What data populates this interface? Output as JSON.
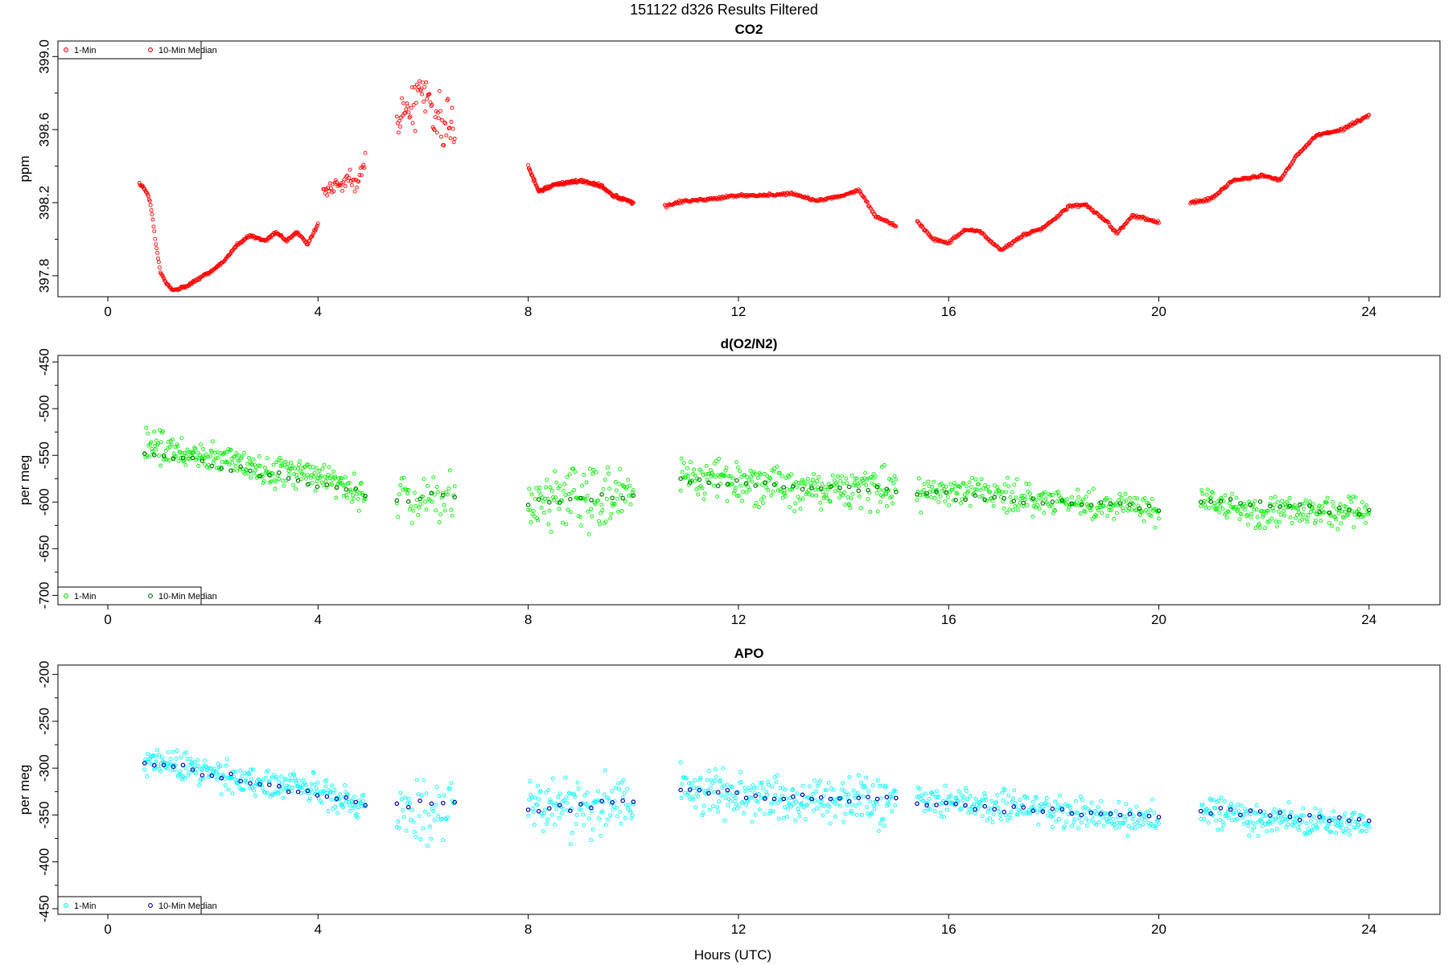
{
  "figure": {
    "suptitle": "151122   d326   Results Filtered",
    "xlabel": "Hours (UTC)"
  },
  "chart_data": [
    {
      "type": "scatter",
      "title": "CO2",
      "ylabel": "ppm",
      "xlim": [
        -0.95,
        25.35
      ],
      "ylim": [
        397.685,
        399.085
      ],
      "xticks": [
        0,
        4,
        8,
        12,
        16,
        20,
        24
      ],
      "yticks": [
        397.8,
        398.2,
        398.6,
        399.0
      ],
      "ytick_labels": [
        "397.8",
        "398.2",
        "398.6",
        "399.0"
      ],
      "legend_position": "top-left",
      "series": [
        {
          "name": "1-Min",
          "color": "#ff0000",
          "noise": 0.007,
          "segments": [
            {
              "points": [
                [
                  0.6,
                  398.31
                ],
                [
                  0.75,
                  398.25
                ],
                [
                  0.8,
                  398.21
                ],
                [
                  0.85,
                  398.12
                ],
                [
                  0.9,
                  398.0
                ],
                [
                  1.0,
                  397.82
                ],
                [
                  1.1,
                  397.76
                ],
                [
                  1.25,
                  397.72
                ],
                [
                  1.5,
                  397.74
                ],
                [
                  1.8,
                  397.8
                ],
                [
                  2.0,
                  397.83
                ],
                [
                  2.2,
                  397.88
                ],
                [
                  2.5,
                  397.98
                ],
                [
                  2.7,
                  398.02
                ],
                [
                  3.0,
                  397.99
                ],
                [
                  3.2,
                  398.04
                ],
                [
                  3.4,
                  397.99
                ],
                [
                  3.6,
                  398.04
                ],
                [
                  3.8,
                  397.97
                ],
                [
                  4.0,
                  398.08
                ]
              ],
              "n": 240
            },
            {
              "points": [
                [
                  4.1,
                  398.25
                ],
                [
                  4.4,
                  398.3
                ],
                [
                  4.6,
                  398.35
                ],
                [
                  4.7,
                  398.28
                ],
                [
                  4.9,
                  398.45
                ]
              ],
              "n": 45,
              "noise": 0.045
            },
            {
              "points": [
                [
                  5.5,
                  398.64
                ],
                [
                  5.8,
                  398.72
                ],
                [
                  6.0,
                  398.85
                ],
                [
                  6.2,
                  398.72
                ],
                [
                  6.4,
                  398.6
                ],
                [
                  6.6,
                  398.6
                ]
              ],
              "n": 70,
              "noise": 0.12
            },
            {
              "points": [
                [
                  8.0,
                  398.4
                ],
                [
                  8.2,
                  398.26
                ],
                [
                  8.5,
                  398.3
                ],
                [
                  9.0,
                  398.32
                ],
                [
                  9.4,
                  398.29
                ],
                [
                  9.6,
                  398.24
                ],
                [
                  10.0,
                  398.2
                ]
              ],
              "n": 200
            },
            {
              "points": [
                [
                  10.6,
                  398.18
                ],
                [
                  11.0,
                  398.21
                ],
                [
                  11.5,
                  398.22
                ],
                [
                  12.0,
                  398.24
                ],
                [
                  12.5,
                  398.24
                ],
                [
                  13.0,
                  398.25
                ],
                [
                  13.5,
                  398.21
                ],
                [
                  14.0,
                  398.24
                ],
                [
                  14.3,
                  398.27
                ],
                [
                  14.6,
                  398.13
                ],
                [
                  15.0,
                  398.07
                ]
              ],
              "n": 260
            },
            {
              "points": [
                [
                  15.4,
                  398.1
                ],
                [
                  15.7,
                  398.0
                ],
                [
                  16.0,
                  397.98
                ],
                [
                  16.3,
                  398.05
                ],
                [
                  16.6,
                  398.04
                ],
                [
                  17.0,
                  397.94
                ],
                [
                  17.4,
                  398.02
                ],
                [
                  17.8,
                  398.06
                ],
                [
                  18.3,
                  398.18
                ],
                [
                  18.6,
                  398.19
                ],
                [
                  19.0,
                  398.1
                ],
                [
                  19.2,
                  398.03
                ],
                [
                  19.5,
                  398.13
                ],
                [
                  20.0,
                  398.09
                ]
              ],
              "n": 280
            },
            {
              "points": [
                [
                  20.6,
                  398.2
                ],
                [
                  21.0,
                  398.22
                ],
                [
                  21.4,
                  398.32
                ],
                [
                  22.0,
                  398.35
                ],
                [
                  22.3,
                  398.32
                ],
                [
                  22.6,
                  398.45
                ],
                [
                  23.0,
                  398.57
                ],
                [
                  23.5,
                  398.6
                ],
                [
                  24.0,
                  398.68
                ]
              ],
              "n": 220
            }
          ]
        },
        {
          "name": "10-Min Median",
          "color": "#cc0000",
          "segments": []
        }
      ]
    },
    {
      "type": "scatter",
      "title": "d(O2/N2)",
      "ylabel": "per meg",
      "xlim": [
        -0.95,
        25.35
      ],
      "ylim": [
        -710,
        -443
      ],
      "xticks": [
        0,
        4,
        8,
        12,
        16,
        20,
        24
      ],
      "yticks": [
        -700,
        -650,
        -600,
        -550,
        -500,
        -450
      ],
      "ytick_labels": [
        "-700",
        "-650",
        "-600",
        "-550",
        "-500",
        "-450"
      ],
      "legend_position": "bottom-left",
      "series": [
        {
          "name": "1-Min",
          "color": "#00ee00",
          "noise": 14,
          "segments": [
            {
              "points": [
                [
                  0.7,
                  -540
                ],
                [
                  2.0,
                  -552
                ],
                [
                  3.0,
                  -568
                ],
                [
                  4.0,
                  -572
                ],
                [
                  4.9,
                  -592
                ]
              ],
              "n": 280
            },
            {
              "points": [
                [
                  5.5,
                  -598
                ],
                [
                  6.6,
                  -600
                ]
              ],
              "n": 50,
              "noise": 30
            },
            {
              "points": [
                [
                  8.0,
                  -598
                ],
                [
                  10.0,
                  -590
                ]
              ],
              "n": 120,
              "noise": 28
            },
            {
              "points": [
                [
                  10.9,
                  -570
                ],
                [
                  12.0,
                  -578
                ],
                [
                  13.0,
                  -585
                ],
                [
                  15.0,
                  -585
                ]
              ],
              "n": 260,
              "noise": 22
            },
            {
              "points": [
                [
                  15.4,
                  -590
                ],
                [
                  17.0,
                  -592
                ],
                [
                  18.0,
                  -600
                ],
                [
                  20.0,
                  -608
                ]
              ],
              "n": 260,
              "noise": 14
            },
            {
              "points": [
                [
                  20.8,
                  -598
                ],
                [
                  22.0,
                  -610
                ],
                [
                  24.0,
                  -614
                ]
              ],
              "n": 200,
              "noise": 14
            }
          ]
        },
        {
          "name": "10-Min Median",
          "color": "#007700",
          "segments": [
            {
              "points": [
                [
                  0.7,
                  -545
                ],
                [
                  4.9,
                  -590
                ]
              ],
              "n": 24
            },
            {
              "points": [
                [
                  5.5,
                  -597
                ],
                [
                  6.6,
                  -592
                ]
              ],
              "n": 6
            },
            {
              "points": [
                [
                  8.0,
                  -600
                ],
                [
                  10.0,
                  -591
                ]
              ],
              "n": 11
            },
            {
              "points": [
                [
                  10.9,
                  -578
                ],
                [
                  15.0,
                  -588
                ]
              ],
              "n": 24
            },
            {
              "points": [
                [
                  15.4,
                  -592
                ],
                [
                  20.0,
                  -606
                ]
              ],
              "n": 26
            },
            {
              "points": [
                [
                  20.8,
                  -598
                ],
                [
                  24.0,
                  -612
                ]
              ],
              "n": 18
            }
          ]
        }
      ]
    },
    {
      "type": "scatter",
      "title": "APO",
      "ylabel": "per meg",
      "xlim": [
        -0.95,
        25.35
      ],
      "ylim": [
        -456,
        -190
      ],
      "xticks": [
        0,
        4,
        8,
        12,
        16,
        20,
        24
      ],
      "yticks": [
        -450,
        -400,
        -350,
        -300,
        -250,
        -200
      ],
      "ytick_labels": [
        "-450",
        "-400",
        "-350",
        "-300",
        "-250",
        "-200"
      ],
      "legend_position": "bottom-left",
      "series": [
        {
          "name": "1-Min",
          "color": "#00ffff",
          "noise": 14,
          "segments": [
            {
              "points": [
                [
                  0.7,
                  -290
                ],
                [
                  2.0,
                  -305
                ],
                [
                  3.0,
                  -318
                ],
                [
                  4.0,
                  -322
                ],
                [
                  4.9,
                  -345
                ]
              ],
              "n": 280
            },
            {
              "points": [
                [
                  5.5,
                  -340
                ],
                [
                  6.6,
                  -345
                ]
              ],
              "n": 50,
              "noise": 32
            },
            {
              "points": [
                [
                  8.0,
                  -345
                ],
                [
                  10.0,
                  -338
                ]
              ],
              "n": 120,
              "noise": 28
            },
            {
              "points": [
                [
                  10.9,
                  -322
                ],
                [
                  12.0,
                  -330
                ],
                [
                  13.0,
                  -335
                ],
                [
                  15.0,
                  -335
                ]
              ],
              "n": 260,
              "noise": 22
            },
            {
              "points": [
                [
                  15.4,
                  -335
                ],
                [
                  17.0,
                  -340
                ],
                [
                  18.0,
                  -348
                ],
                [
                  20.0,
                  -355
                ]
              ],
              "n": 260,
              "noise": 14
            },
            {
              "points": [
                [
                  20.8,
                  -345
                ],
                [
                  22.0,
                  -355
                ],
                [
                  24.0,
                  -360
                ]
              ],
              "n": 200,
              "noise": 14
            }
          ]
        },
        {
          "name": "10-Min Median",
          "color": "#0000aa",
          "segments": [
            {
              "points": [
                [
                  0.7,
                  -292
                ],
                [
                  4.9,
                  -338
                ]
              ],
              "n": 24
            },
            {
              "points": [
                [
                  5.5,
                  -340
                ],
                [
                  6.6,
                  -336
                ]
              ],
              "n": 6
            },
            {
              "points": [
                [
                  8.0,
                  -346
                ],
                [
                  10.0,
                  -336
                ]
              ],
              "n": 11
            },
            {
              "points": [
                [
                  10.9,
                  -325
                ],
                [
                  15.0,
                  -335
                ]
              ],
              "n": 24
            },
            {
              "points": [
                [
                  15.4,
                  -338
                ],
                [
                  20.0,
                  -352
                ]
              ],
              "n": 26
            },
            {
              "points": [
                [
                  20.8,
                  -345
                ],
                [
                  24.0,
                  -358
                ]
              ],
              "n": 18
            }
          ]
        }
      ]
    }
  ]
}
